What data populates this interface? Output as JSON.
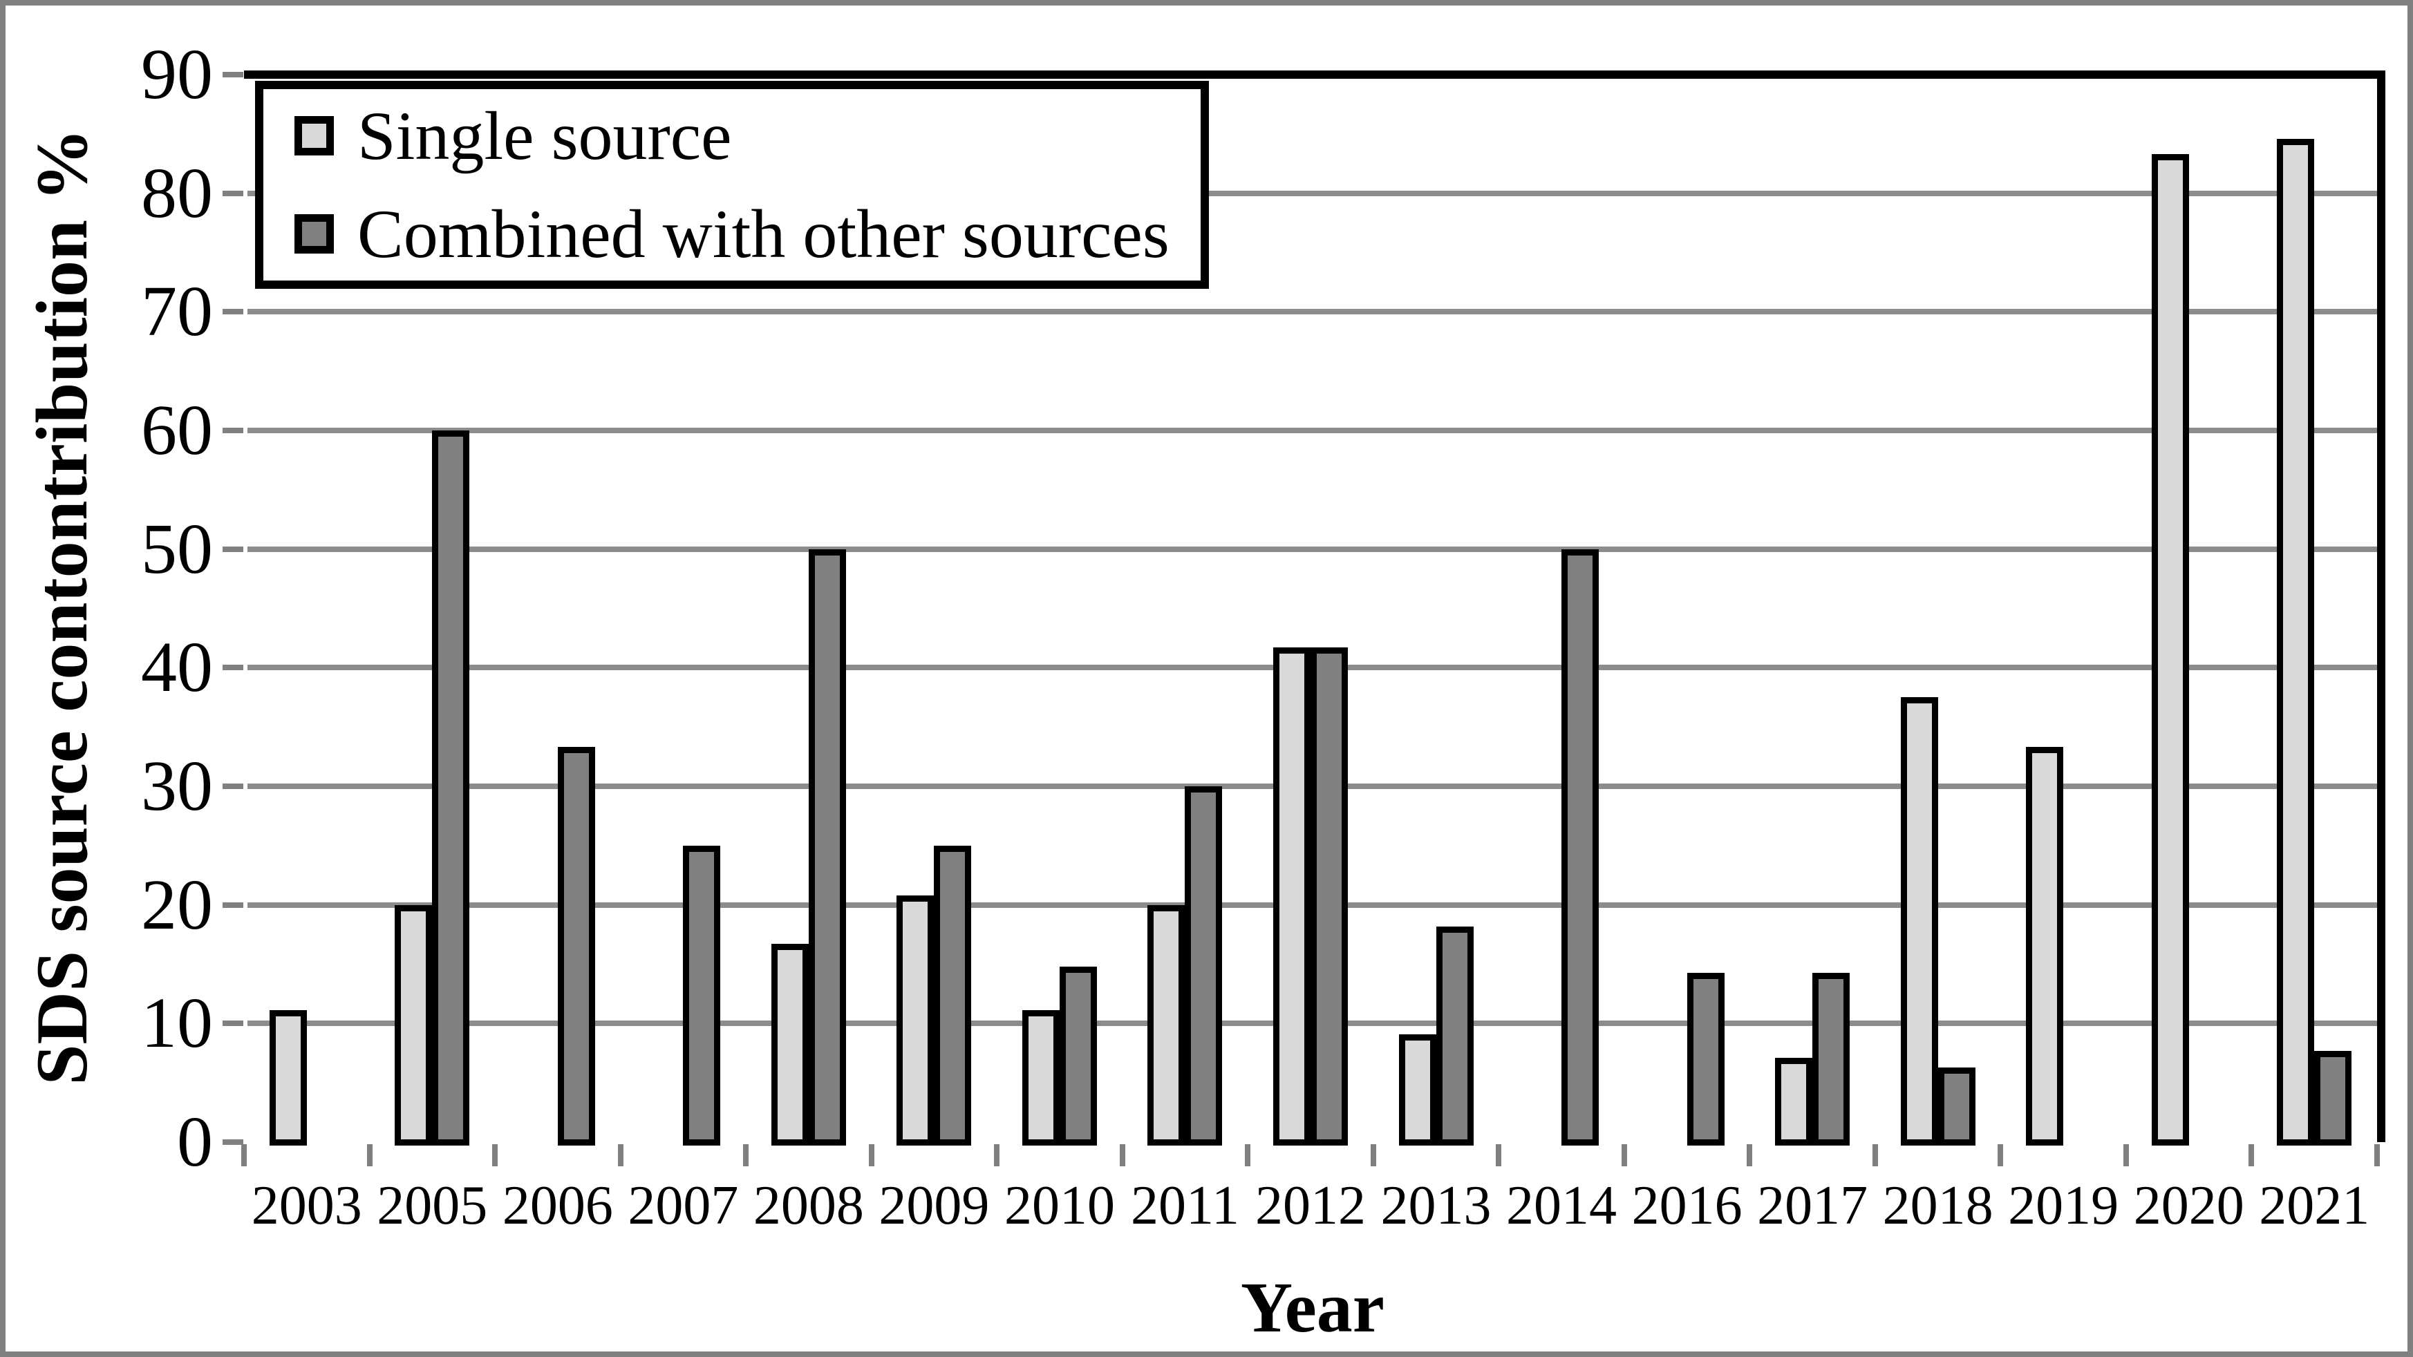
{
  "figure": {
    "background": "#ffffff",
    "border_color": "#808080"
  },
  "colors": {
    "gridline": "#8c8c8c",
    "axis": "#808080",
    "plot_border": "#000000",
    "bar_outline": "#000000",
    "text": "#000000",
    "legend_background": "#ffffff"
  },
  "chart_data": {
    "type": "bar",
    "title": "",
    "xlabel": "Year",
    "ylabel": "SDS source contontribution %",
    "ylim": [
      0,
      90
    ],
    "ytick_step": 10,
    "yticks": [
      0,
      10,
      20,
      30,
      40,
      50,
      60,
      70,
      80,
      90
    ],
    "grid": true,
    "legend_position": "top-left",
    "categories": [
      "2003",
      "2005",
      "2006",
      "2007",
      "2008",
      "2009",
      "2010",
      "2011",
      "2012",
      "2013",
      "2014",
      "2016",
      "2017",
      "2018",
      "2019",
      "2020",
      "2021"
    ],
    "series": [
      {
        "name": "Single source",
        "color": "#d9d9d9",
        "values": [
          11.1,
          20,
          0,
          0,
          16.7,
          20.8,
          11.1,
          20,
          41.7,
          9.1,
          0,
          0,
          7.1,
          37.5,
          33.3,
          83.3,
          84.6
        ]
      },
      {
        "name": "Combined with other sources",
        "color": "#808080",
        "values": [
          0,
          60,
          33.3,
          25,
          50,
          25,
          14.8,
          30,
          41.7,
          18.2,
          50,
          14.3,
          14.3,
          6.3,
          0,
          0,
          7.7
        ]
      }
    ]
  }
}
